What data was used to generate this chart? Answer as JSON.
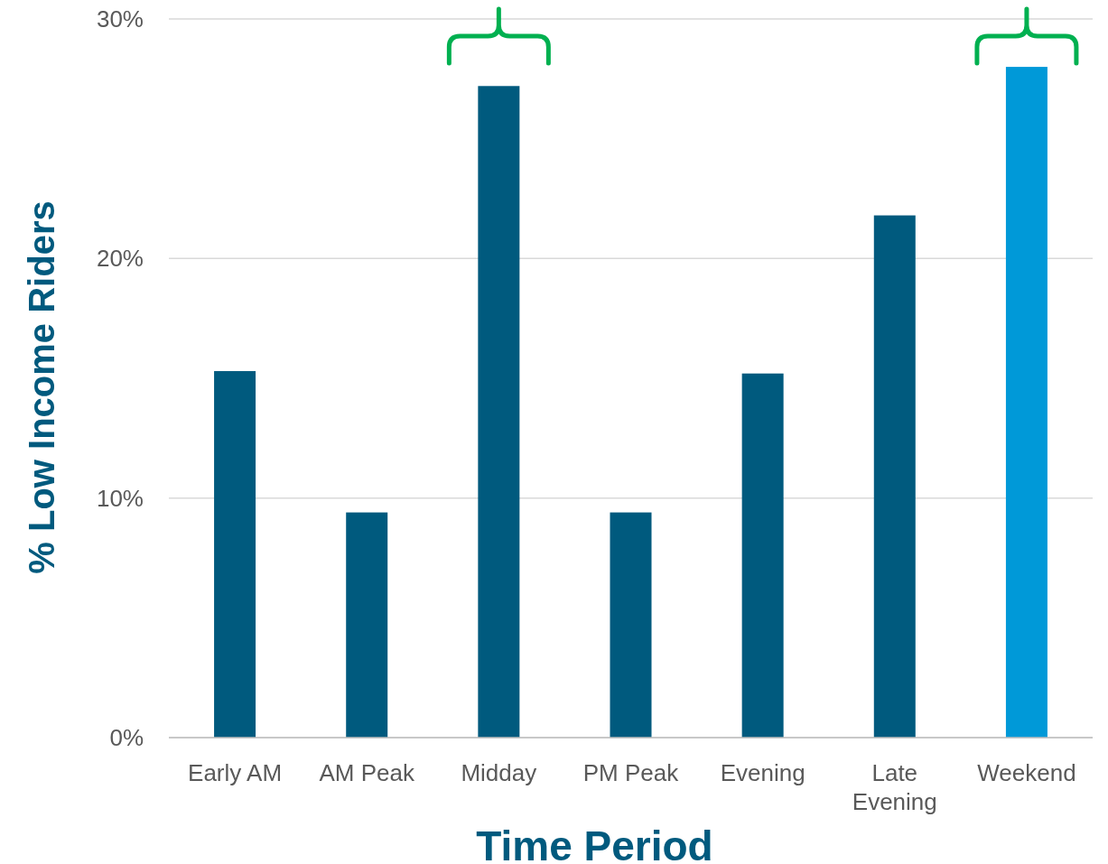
{
  "chart_data": {
    "type": "bar",
    "xlabel": "Time Period",
    "ylabel": "% Low Income Riders",
    "categories": [
      "Early AM",
      "AM Peak",
      "Midday",
      "PM Peak",
      "Evening",
      "Late Evening",
      "Weekend"
    ],
    "values": [
      15.3,
      9.4,
      27.2,
      9.4,
      15.2,
      21.8,
      28.0
    ],
    "colors": [
      "#005a7e",
      "#005a7e",
      "#005a7e",
      "#005a7e",
      "#005a7e",
      "#005a7e",
      "#0099d8"
    ],
    "ylim": [
      0,
      30
    ],
    "yticks": [
      {
        "value": 0,
        "label": "0%"
      },
      {
        "value": 10,
        "label": "10%"
      },
      {
        "value": 20,
        "label": "20%"
      },
      {
        "value": 30,
        "label": "30%"
      }
    ],
    "grid": "y"
  }
}
